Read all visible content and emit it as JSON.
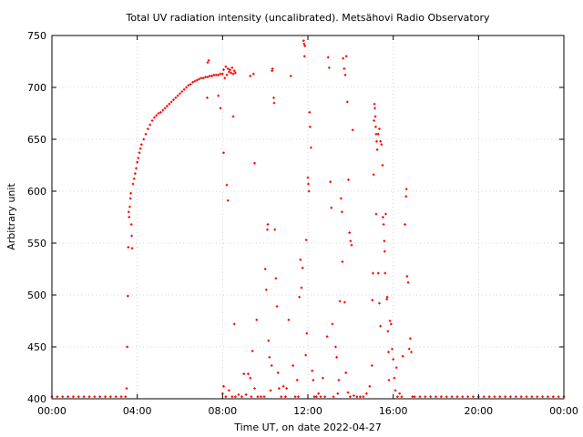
{
  "chart_data": {
    "type": "scatter",
    "title": "Total UV radiation intensity (uncalibrated). Metsähovi Radio Observatory",
    "xlabel": "Time UT, on date 2022-04-27",
    "ylabel": "Arbitrary unit",
    "xlim": [
      0,
      24
    ],
    "ylim": [
      400,
      750
    ],
    "x_ticks": [
      {
        "value": 0,
        "label": "00:00"
      },
      {
        "value": 4,
        "label": "04:00"
      },
      {
        "value": 8,
        "label": "08:00"
      },
      {
        "value": 12,
        "label": "12:00"
      },
      {
        "value": 16,
        "label": "16:00"
      },
      {
        "value": 20,
        "label": "20:00"
      },
      {
        "value": 24,
        "label": "00:00"
      }
    ],
    "y_ticks": [
      {
        "value": 400,
        "label": "400"
      },
      {
        "value": 450,
        "label": "450"
      },
      {
        "value": 500,
        "label": "500"
      },
      {
        "value": 550,
        "label": "550"
      },
      {
        "value": 600,
        "label": "600"
      },
      {
        "value": 650,
        "label": "650"
      },
      {
        "value": 700,
        "label": "700"
      },
      {
        "value": 750,
        "label": "750"
      }
    ],
    "grid": true,
    "marker_color": "#ff0000",
    "series": [
      {
        "x_unit": "hours UT",
        "points": [
          [
            0.0,
            402
          ],
          [
            0.25,
            402
          ],
          [
            0.5,
            402
          ],
          [
            0.75,
            402
          ],
          [
            1.0,
            402
          ],
          [
            1.25,
            402
          ],
          [
            1.5,
            402
          ],
          [
            1.75,
            402
          ],
          [
            2.0,
            402
          ],
          [
            2.25,
            402
          ],
          [
            2.5,
            402
          ],
          [
            2.75,
            402
          ],
          [
            3.0,
            402
          ],
          [
            3.25,
            402
          ],
          [
            3.45,
            402
          ],
          [
            3.5,
            410
          ],
          [
            3.53,
            450
          ],
          [
            3.56,
            499
          ],
          [
            3.58,
            546
          ],
          [
            3.6,
            580
          ],
          [
            3.62,
            575
          ],
          [
            3.65,
            585
          ],
          [
            3.68,
            593
          ],
          [
            3.7,
            598
          ],
          [
            3.72,
            568
          ],
          [
            3.74,
            557
          ],
          [
            3.76,
            545
          ],
          [
            3.8,
            607
          ],
          [
            3.85,
            612
          ],
          [
            3.9,
            617
          ],
          [
            3.95,
            622
          ],
          [
            4.0,
            628
          ],
          [
            4.05,
            632
          ],
          [
            4.1,
            637
          ],
          [
            4.15,
            641
          ],
          [
            4.2,
            645
          ],
          [
            4.3,
            650
          ],
          [
            4.4,
            655
          ],
          [
            4.5,
            660
          ],
          [
            4.6,
            664
          ],
          [
            4.7,
            668
          ],
          [
            4.8,
            671
          ],
          [
            4.9,
            673
          ],
          [
            5.0,
            675
          ],
          [
            5.1,
            676
          ],
          [
            5.2,
            678
          ],
          [
            5.3,
            680
          ],
          [
            5.4,
            682
          ],
          [
            5.5,
            684
          ],
          [
            5.6,
            686
          ],
          [
            5.7,
            688
          ],
          [
            5.8,
            690
          ],
          [
            5.9,
            692
          ],
          [
            6.0,
            694
          ],
          [
            6.1,
            696
          ],
          [
            6.2,
            698
          ],
          [
            6.3,
            700
          ],
          [
            6.4,
            702
          ],
          [
            6.5,
            703
          ],
          [
            6.6,
            705
          ],
          [
            6.7,
            706
          ],
          [
            6.8,
            707
          ],
          [
            6.9,
            708
          ],
          [
            7.0,
            709
          ],
          [
            7.1,
            709
          ],
          [
            7.2,
            710
          ],
          [
            7.3,
            710
          ],
          [
            7.4,
            711
          ],
          [
            7.5,
            711
          ],
          [
            7.6,
            712
          ],
          [
            7.7,
            712
          ],
          [
            7.8,
            712
          ],
          [
            7.9,
            713
          ],
          [
            8.0,
            713
          ],
          [
            7.35,
            726
          ],
          [
            7.3,
            724
          ],
          [
            7.28,
            690
          ],
          [
            7.8,
            692
          ],
          [
            8.05,
            717
          ],
          [
            8.15,
            720
          ],
          [
            8.25,
            718
          ],
          [
            8.35,
            717
          ],
          [
            8.45,
            719
          ],
          [
            8.55,
            716
          ],
          [
            8.1,
            709
          ],
          [
            8.2,
            712
          ],
          [
            8.3,
            715
          ],
          [
            8.4,
            714
          ],
          [
            8.5,
            713
          ],
          [
            8.6,
            714
          ],
          [
            7.9,
            680
          ],
          [
            8.05,
            637
          ],
          [
            8.2,
            606
          ],
          [
            8.25,
            591
          ],
          [
            8.5,
            672
          ],
          [
            8.55,
            472
          ],
          [
            9.3,
            711
          ],
          [
            9.45,
            713
          ],
          [
            9.5,
            627
          ],
          [
            9.6,
            476
          ],
          [
            9.4,
            446
          ],
          [
            9.3,
            420
          ],
          [
            8.0,
            405
          ],
          [
            8.05,
            412
          ],
          [
            8.15,
            402
          ],
          [
            8.3,
            408
          ],
          [
            8.45,
            402
          ],
          [
            8.6,
            402
          ],
          [
            8.75,
            404
          ],
          [
            8.9,
            402
          ],
          [
            9.0,
            424
          ],
          [
            9.1,
            404
          ],
          [
            9.2,
            424
          ],
          [
            9.35,
            402
          ],
          [
            9.5,
            410
          ],
          [
            9.65,
            402
          ],
          [
            9.8,
            402
          ],
          [
            9.95,
            402
          ],
          [
            10.0,
            525
          ],
          [
            10.05,
            505
          ],
          [
            10.1,
            563
          ],
          [
            10.12,
            568
          ],
          [
            10.15,
            456
          ],
          [
            10.2,
            440
          ],
          [
            10.25,
            408
          ],
          [
            10.3,
            432
          ],
          [
            10.32,
            716
          ],
          [
            10.34,
            718
          ],
          [
            10.4,
            690
          ],
          [
            10.42,
            685
          ],
          [
            10.45,
            563
          ],
          [
            10.5,
            516
          ],
          [
            10.55,
            489
          ],
          [
            10.6,
            425
          ],
          [
            10.65,
            410
          ],
          [
            10.75,
            402
          ],
          [
            10.85,
            412
          ],
          [
            10.95,
            402
          ],
          [
            11.0,
            410
          ],
          [
            11.1,
            476
          ],
          [
            11.2,
            711
          ],
          [
            11.3,
            432
          ],
          [
            11.4,
            402
          ],
          [
            11.5,
            418
          ],
          [
            11.55,
            402
          ],
          [
            11.6,
            498
          ],
          [
            11.65,
            534
          ],
          [
            11.7,
            507
          ],
          [
            11.75,
            526
          ],
          [
            11.8,
            745
          ],
          [
            11.82,
            742
          ],
          [
            11.84,
            730
          ],
          [
            11.86,
            740
          ],
          [
            11.9,
            442
          ],
          [
            11.92,
            553
          ],
          [
            11.95,
            463
          ],
          [
            12.0,
            613
          ],
          [
            12.02,
            607
          ],
          [
            12.05,
            600
          ],
          [
            12.08,
            676
          ],
          [
            12.1,
            662
          ],
          [
            12.15,
            642
          ],
          [
            12.2,
            427
          ],
          [
            12.25,
            418
          ],
          [
            12.3,
            402
          ],
          [
            12.4,
            402
          ],
          [
            12.5,
            405
          ],
          [
            12.6,
            402
          ],
          [
            12.7,
            420
          ],
          [
            12.8,
            402
          ],
          [
            12.9,
            460
          ],
          [
            12.95,
            729
          ],
          [
            13.0,
            719
          ],
          [
            13.05,
            609
          ],
          [
            13.1,
            584
          ],
          [
            13.15,
            472
          ],
          [
            13.2,
            402
          ],
          [
            13.3,
            450
          ],
          [
            13.35,
            440
          ],
          [
            13.4,
            405
          ],
          [
            13.45,
            418
          ],
          [
            13.5,
            494
          ],
          [
            13.55,
            593
          ],
          [
            13.6,
            580
          ],
          [
            13.65,
            728
          ],
          [
            13.7,
            718
          ],
          [
            13.75,
            712
          ],
          [
            13.8,
            730
          ],
          [
            13.85,
            686
          ],
          [
            13.9,
            611
          ],
          [
            13.95,
            560
          ],
          [
            14.0,
            552
          ],
          [
            14.05,
            548
          ],
          [
            14.1,
            659
          ],
          [
            13.62,
            532
          ],
          [
            13.72,
            493
          ],
          [
            13.78,
            425
          ],
          [
            13.88,
            406
          ],
          [
            13.98,
            402
          ],
          [
            14.15,
            403
          ],
          [
            14.3,
            402
          ],
          [
            14.45,
            402
          ],
          [
            14.6,
            402
          ],
          [
            14.75,
            405
          ],
          [
            14.9,
            412
          ],
          [
            15.0,
            432
          ],
          [
            15.02,
            495
          ],
          [
            15.05,
            521
          ],
          [
            15.08,
            616
          ],
          [
            15.1,
            668
          ],
          [
            15.12,
            684
          ],
          [
            15.14,
            680
          ],
          [
            15.16,
            672
          ],
          [
            15.18,
            662
          ],
          [
            15.2,
            655
          ],
          [
            15.22,
            648
          ],
          [
            15.25,
            640
          ],
          [
            15.3,
            655
          ],
          [
            15.35,
            660
          ],
          [
            15.4,
            648
          ],
          [
            15.45,
            645
          ],
          [
            15.5,
            625
          ],
          [
            15.52,
            575
          ],
          [
            15.55,
            568
          ],
          [
            15.58,
            552
          ],
          [
            15.6,
            542
          ],
          [
            15.62,
            521
          ],
          [
            15.65,
            578
          ],
          [
            15.7,
            496
          ],
          [
            15.72,
            498
          ],
          [
            15.75,
            465
          ],
          [
            15.78,
            445
          ],
          [
            15.8,
            418
          ],
          [
            15.85,
            475
          ],
          [
            15.9,
            472
          ],
          [
            15.95,
            448
          ],
          [
            16.0,
            438
          ],
          [
            16.05,
            420
          ],
          [
            16.1,
            408
          ],
          [
            16.15,
            430
          ],
          [
            16.2,
            402
          ],
          [
            16.3,
            405
          ],
          [
            16.4,
            402
          ],
          [
            16.45,
            441
          ],
          [
            16.55,
            568
          ],
          [
            16.6,
            595
          ],
          [
            16.62,
            602
          ],
          [
            16.65,
            518
          ],
          [
            16.7,
            512
          ],
          [
            16.75,
            448
          ],
          [
            16.8,
            458
          ],
          [
            16.85,
            445
          ],
          [
            16.9,
            402
          ],
          [
            15.2,
            578
          ],
          [
            15.3,
            521
          ],
          [
            15.35,
            492
          ],
          [
            15.4,
            470
          ],
          [
            17.0,
            402
          ],
          [
            17.25,
            402
          ],
          [
            17.5,
            402
          ],
          [
            17.75,
            402
          ],
          [
            18.0,
            402
          ],
          [
            18.25,
            402
          ],
          [
            18.5,
            402
          ],
          [
            18.75,
            402
          ],
          [
            19.0,
            402
          ],
          [
            19.25,
            402
          ],
          [
            19.5,
            402
          ],
          [
            19.75,
            402
          ],
          [
            20.0,
            402
          ],
          [
            20.25,
            402
          ],
          [
            20.5,
            402
          ],
          [
            20.75,
            402
          ],
          [
            21.0,
            402
          ],
          [
            21.25,
            402
          ],
          [
            21.5,
            402
          ],
          [
            21.75,
            402
          ],
          [
            22.0,
            402
          ],
          [
            22.25,
            402
          ],
          [
            22.5,
            402
          ],
          [
            22.75,
            402
          ],
          [
            23.0,
            402
          ],
          [
            23.25,
            402
          ],
          [
            23.5,
            402
          ],
          [
            23.75,
            402
          ],
          [
            24.0,
            402
          ]
        ]
      }
    ]
  }
}
